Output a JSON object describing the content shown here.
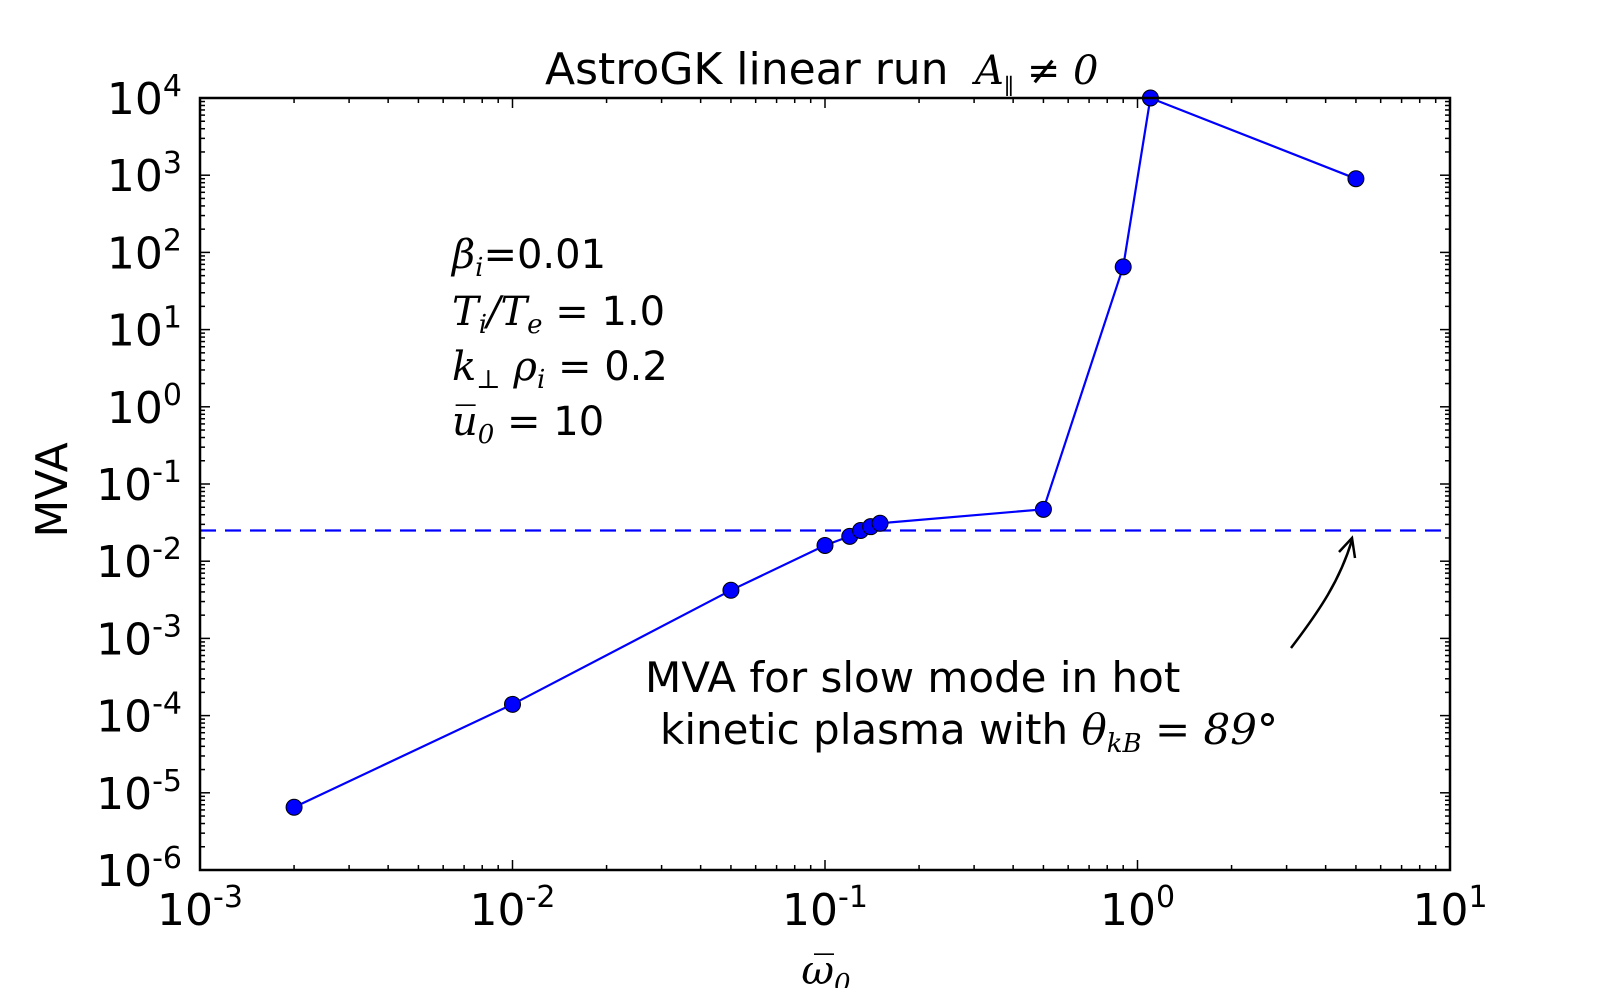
{
  "chart_data": {
    "type": "line",
    "title": "AstroGK linear run",
    "title_math": "A∥≠0",
    "xlabel": "ω̅0",
    "ylabel": "MVA",
    "x_scale": "log",
    "y_scale": "log",
    "xlim": [
      0.001,
      10
    ],
    "ylim": [
      1e-06,
      10000
    ],
    "grid": false,
    "x_ticks": [
      {
        "value": 0.001,
        "base": "10",
        "exp": "-3"
      },
      {
        "value": 0.01,
        "base": "10",
        "exp": "-2"
      },
      {
        "value": 0.1,
        "base": "10",
        "exp": "-1"
      },
      {
        "value": 1,
        "base": "10",
        "exp": "0"
      },
      {
        "value": 10,
        "base": "10",
        "exp": "1"
      }
    ],
    "y_ticks": [
      {
        "value": 1e-06,
        "base": "10",
        "exp": "-6"
      },
      {
        "value": 1e-05,
        "base": "10",
        "exp": "-5"
      },
      {
        "value": 0.0001,
        "base": "10",
        "exp": "-4"
      },
      {
        "value": 0.001,
        "base": "10",
        "exp": "-3"
      },
      {
        "value": 0.01,
        "base": "10",
        "exp": "-2"
      },
      {
        "value": 0.1,
        "base": "10",
        "exp": "-1"
      },
      {
        "value": 1,
        "base": "10",
        "exp": "0"
      },
      {
        "value": 10,
        "base": "10",
        "exp": "1"
      },
      {
        "value": 100,
        "base": "10",
        "exp": "2"
      },
      {
        "value": 1000,
        "base": "10",
        "exp": "3"
      },
      {
        "value": 10000,
        "base": "10",
        "exp": "4"
      }
    ],
    "series": [
      {
        "color": "#0000ff",
        "x": [
          0.002,
          0.01,
          0.05,
          0.1,
          0.12,
          0.13,
          0.14,
          0.15,
          0.5,
          0.9,
          1.1,
          5.0
        ],
        "y": [
          6.5e-06,
          0.00014,
          0.0042,
          0.016,
          0.021,
          0.025,
          0.028,
          0.031,
          0.047,
          65,
          10000,
          900
        ]
      }
    ],
    "reference_line": {
      "y": 0.025,
      "color": "#0000ff",
      "style": "dashed"
    },
    "parameters": [
      {
        "math": "βi",
        "text": "=0.01"
      },
      {
        "math": "Ti/Te=",
        "text": "1.0"
      },
      {
        "math": "k⊥ρi=",
        "text": "0.2"
      },
      {
        "math": "u̅0=",
        "text": "10"
      }
    ],
    "annotation": {
      "line1": "MVA for slow mode in hot",
      "line2": "kinetic plasma with",
      "math": "θkB=89°"
    }
  }
}
